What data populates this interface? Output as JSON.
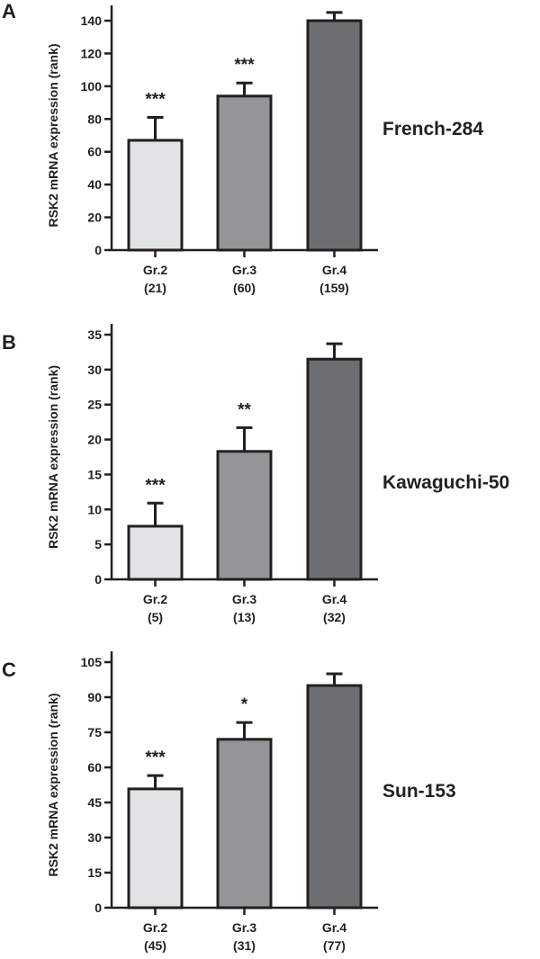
{
  "chart_data": [
    {
      "type": "bar",
      "panel_label": "A",
      "title": "French-284",
      "ylabel": "RSK2 mRNA expression (rank)",
      "ylim": [
        0,
        140
      ],
      "yticks": [
        0,
        20,
        40,
        60,
        80,
        100,
        120,
        140
      ],
      "categories": [
        "Gr.2",
        "Gr.3",
        "Gr.4"
      ],
      "category_n": [
        "(21)",
        "(60)",
        "(159)"
      ],
      "values": [
        67,
        94,
        140
      ],
      "error_upper": [
        81,
        102,
        145
      ],
      "significance": [
        "***",
        "***",
        ""
      ],
      "colors": [
        "#e2e3e5",
        "#939598",
        "#6d6e71"
      ]
    },
    {
      "type": "bar",
      "panel_label": "B",
      "title": "Kawaguchi-50",
      "ylabel": "RSK2 mRNA expression (rank)",
      "ylim": [
        0,
        35
      ],
      "yticks": [
        0,
        5,
        10,
        15,
        20,
        25,
        30,
        35
      ],
      "categories": [
        "Gr.2",
        "Gr.3",
        "Gr.4"
      ],
      "category_n": [
        "(5)",
        "(13)",
        "(32)"
      ],
      "values": [
        7.6,
        18.3,
        31.5
      ],
      "error_upper": [
        10.9,
        21.7,
        33.7
      ],
      "significance": [
        "***",
        "**",
        ""
      ],
      "colors": [
        "#e2e3e5",
        "#939598",
        "#6d6e71"
      ]
    },
    {
      "type": "bar",
      "panel_label": "C",
      "title": "Sun-153",
      "ylabel": "RSK2 mRNA expression (rank)",
      "ylim": [
        0,
        105
      ],
      "yticks": [
        0,
        15,
        30,
        45,
        60,
        75,
        90,
        105
      ],
      "categories": [
        "Gr.2",
        "Gr.3",
        "Gr.4"
      ],
      "category_n": [
        "(45)",
        "(31)",
        "(77)"
      ],
      "values": [
        50.8,
        72,
        95
      ],
      "error_upper": [
        56.5,
        79.2,
        100
      ],
      "significance": [
        "***",
        "*",
        ""
      ],
      "colors": [
        "#e2e3e5",
        "#939598",
        "#6d6e71"
      ]
    }
  ]
}
